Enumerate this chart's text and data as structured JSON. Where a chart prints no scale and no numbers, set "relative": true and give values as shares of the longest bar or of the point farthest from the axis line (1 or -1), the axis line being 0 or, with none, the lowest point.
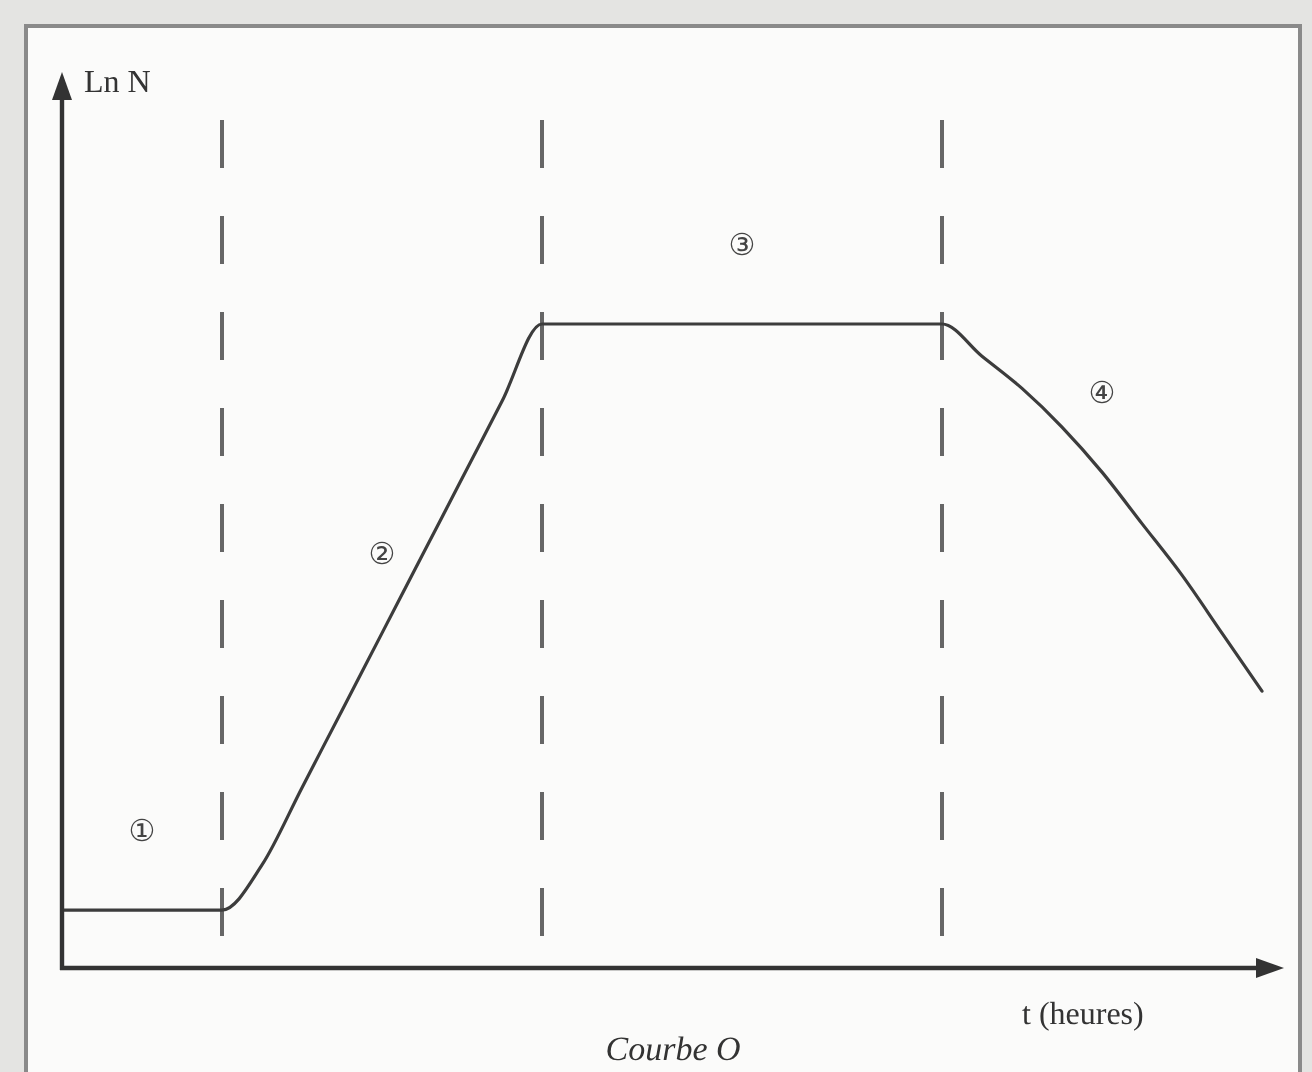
{
  "chart_data": {
    "type": "line",
    "title": "Courbe O",
    "xlabel": "t (heures)",
    "categories": [
      null,
      null,
      null,
      null,
      null,
      null,
      null,
      null,
      null,
      null,
      null,
      null,
      null,
      null,
      null,
      null,
      null,
      null,
      null,
      null,
      null,
      null,
      null,
      null,
      null,
      null,
      null,
      null,
      null,
      null,
      null
    ],
    "values": [
      0.09,
      0.09,
      0.09,
      0.09,
      0.09,
      0.16,
      0.28,
      0.4,
      0.52,
      0.64,
      0.76,
      0.88,
      1,
      1,
      1,
      1,
      1,
      1,
      1,
      1,
      1,
      1,
      1,
      0.95,
      0.9,
      0.84,
      0.77,
      0.69,
      0.61,
      0.52,
      0.43
    ],
    "color": "#3c3c3c",
    "relative": true,
    "grid": "x",
    "annotations": [
      "Ln N",
      "①",
      "②",
      "③",
      "④"
    ]
  }
}
